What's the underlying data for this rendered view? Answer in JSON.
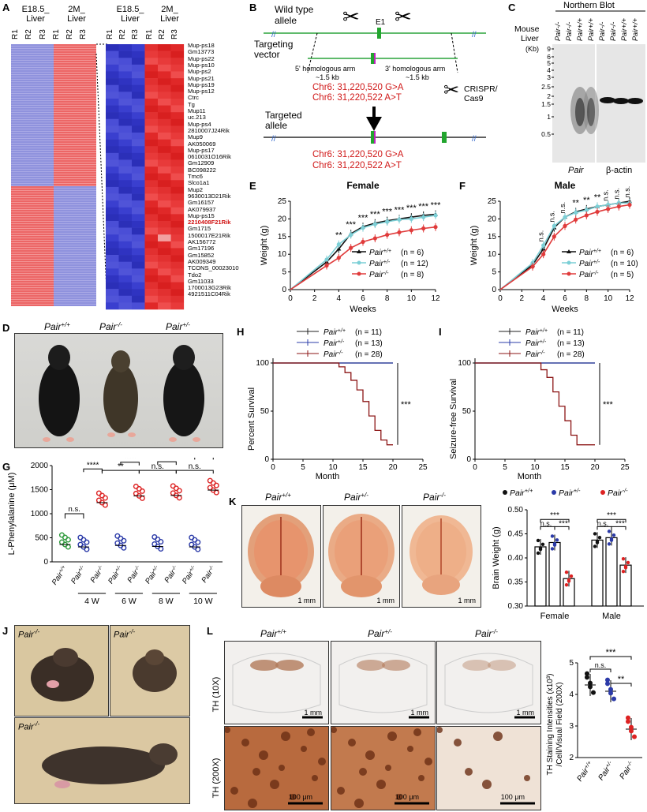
{
  "panel_letters": [
    "A",
    "B",
    "C",
    "D",
    "E",
    "F",
    "G",
    "H",
    "I",
    "J",
    "K",
    "L"
  ],
  "panel_a": {
    "col_groups": [
      "E18.5_\nLiver",
      "2M_\nLiver"
    ],
    "group1": "E18.5_ Liver",
    "group2": "2M_ Liver",
    "group1_short": "E18.5_",
    "group1_second": "Liver",
    "group2_short": "2M_",
    "group2_second": "Liver",
    "replicates": [
      "R1",
      "R2",
      "R3"
    ],
    "genes": [
      "Mup-ps18",
      "Gm13773",
      "Mup-ps22",
      "Mup-ps10",
      "Mup-ps2",
      "Mup-ps21",
      "Mup-ps19",
      "Mup-ps12",
      "Ctrc",
      "Tg",
      "Mup11",
      "uc.213",
      "Mup-ps4",
      "2810007J24Rik",
      "Mup9",
      "AK050069",
      "Mup-ps17",
      "0610031O16Rik",
      "Gm12909",
      "BC098222",
      "Tmc6",
      "Slco1a1",
      "Mup2",
      "9630013D21Rik",
      "Gm16157",
      "AK079937",
      "Mup-ps15",
      "2210408F21Rik",
      "Gm1715",
      "1500017E21Rik",
      "AK156772",
      "Gm17196",
      "Gm15852",
      "AK009349",
      "TCONS_00023010",
      "Tdo2",
      "Gm11033",
      "1700013G23Rik",
      "4921511C04Rik"
    ],
    "highlight_gene": "2210408F21Rik",
    "colors": {
      "high": "#e03030",
      "low": "#3a3fcf",
      "highlight": "#d01010"
    }
  },
  "panel_b": {
    "wild_type": "Wild type\nallele",
    "wt1": "Wild type",
    "wt2": "allele",
    "targeting1": "Targeting",
    "targeting2": "vector",
    "e1": "E1",
    "arm5": "5' homologous arm",
    "arm5_len": "~1.5 kb",
    "arm3": "3' homologous arm",
    "arm3_len": "~1.5 kb",
    "mut1": "Chr6: 31,220,520 G>A",
    "mut2": "Chr6: 31,220,522 A>T",
    "crispr1": "CRISPR/",
    "crispr2": "Cas9",
    "targeted1": "Targeted",
    "targeted2": "allele"
  },
  "panel_c": {
    "title": "Northern Blot",
    "mouse": "Mouse",
    "liver": "Liver",
    "kb": "(Kb)",
    "lanes": [
      "Pair-/-",
      "Pair-/-",
      "Pair+/+",
      "Pair+/+"
    ],
    "markers": [
      "9",
      "6",
      "5",
      "4",
      "3",
      "2.5",
      "2",
      "1.5",
      "1",
      "0.5"
    ],
    "probe1": "Pair",
    "probe2": "β-actin"
  },
  "panel_e": {
    "title": "Female",
    "xlabel": "Weeks",
    "ylabel": "Weight (g)",
    "legend": [
      "Pair+/+ (n = 6)",
      "Pair+/- (n = 12)",
      "Pair-/- (n = 8)"
    ],
    "leg_n": [
      "(n = 6)",
      "(n = 12)",
      "(n = 8)"
    ],
    "sig": [
      "**",
      "***",
      "***",
      "***",
      "***",
      "***",
      "***",
      "***",
      "***"
    ]
  },
  "panel_f": {
    "title": "Male",
    "xlabel": "Weeks",
    "ylabel": "Weight (g)",
    "leg_n": [
      "(n = 6)",
      "(n = 10)",
      "(n = 5)"
    ],
    "sig": [
      "n.s.",
      "n.s.",
      "n.s.",
      "**",
      "**",
      "**",
      "n.s.",
      "n.s.",
      "n.s."
    ]
  },
  "panel_d": {
    "labels": [
      "Pair+/+",
      "Pair-/-",
      "Pair+/-"
    ]
  },
  "panel_g": {
    "ylabel": "L-Phenylalanine (μM)",
    "groups": [
      "4 W",
      "6 W",
      "8 W",
      "10 W"
    ],
    "sig_top": [
      "**",
      "n.s.",
      "n.s."
    ],
    "sig_group": [
      "****",
      "****",
      "****",
      "****"
    ],
    "sig_first": "n.s."
  },
  "panel_h": {
    "ylabel": "Percent Survival",
    "xlabel": "Month",
    "leg_n": [
      "(n = 11)",
      "(n = 13)",
      "(n = 28)"
    ],
    "sig": "***"
  },
  "panel_i": {
    "ylabel": "Seizure-free Survival",
    "xlabel": "Month",
    "leg_n": [
      "(n = 11)",
      "(n = 13)",
      "(n = 28)"
    ],
    "sig": "***"
  },
  "panel_k": {
    "labels": [
      "Pair+/+",
      "Pair+/-",
      "Pair-/-"
    ],
    "scale": "1 mm",
    "ylabel": "Brain Weight (g)",
    "groups": [
      "Female",
      "Male"
    ],
    "sig": [
      "***",
      "n.s.",
      "***",
      "***",
      "n.s.",
      "***"
    ]
  },
  "panel_j": {
    "labels": [
      "Pair-/-",
      "Pair-/-",
      "Pair-/-"
    ]
  },
  "panel_l": {
    "cols": [
      "Pair+/+",
      "Pair+/-",
      "Pair-/-"
    ],
    "row1": "TH (10X)",
    "row2": "TH (200X)",
    "scale1": "1 mm",
    "scale2": "100 μm",
    "ylabel1": "TH Staining Intensities (x10³)",
    "ylabel2": "/Cell/Visual Field (200X)",
    "sig": [
      "***",
      "n.s.",
      "**"
    ]
  },
  "genotypes": {
    "wt": "Pair",
    "het": "Pair",
    "ko": "Pair",
    "wt_sup": "+/+",
    "het_sup": "+/-",
    "ko_sup": "-/-"
  },
  "chart_data": [
    {
      "type": "line",
      "title": "Female",
      "xlabel": "Weeks",
      "ylabel": "Weight (g)",
      "xlim": [
        0,
        12
      ],
      "ylim": [
        0,
        25
      ],
      "x": [
        0,
        3,
        4,
        5,
        6,
        7,
        8,
        9,
        10,
        11,
        12
      ],
      "series": [
        {
          "name": "Pair+/+ (n = 6)",
          "values": [
            0,
            7.8,
            11.5,
            15.8,
            17.8,
            18.8,
            19.5,
            20,
            20.5,
            21,
            21.3
          ]
        },
        {
          "name": "Pair+/- (n = 12)",
          "values": [
            0,
            8.5,
            12.8,
            15.5,
            17.5,
            18.5,
            19.2,
            19.8,
            20,
            20.5,
            21
          ]
        },
        {
          "name": "Pair-/- (n = 8)",
          "values": [
            0,
            6.8,
            9,
            11.8,
            13.5,
            14.5,
            15.5,
            16.2,
            16.8,
            17.3,
            17.7
          ]
        }
      ]
    },
    {
      "type": "line",
      "title": "Male",
      "xlabel": "Weeks",
      "ylabel": "Weight (g)",
      "xlim": [
        0,
        12
      ],
      "ylim": [
        0,
        25
      ],
      "x": [
        0,
        3,
        4,
        5,
        6,
        7,
        8,
        9,
        10,
        11,
        12
      ],
      "series": [
        {
          "name": "Pair+/+ (n = 6)",
          "values": [
            0,
            7,
            11.5,
            17.5,
            20.5,
            22,
            22.8,
            23.5,
            24,
            24.5,
            25
          ]
        },
        {
          "name": "Pair+/- (n = 10)",
          "values": [
            0,
            7.5,
            12.5,
            18,
            20.5,
            21.8,
            22.5,
            23.5,
            24,
            24.5,
            24.5
          ]
        },
        {
          "name": "Pair-/- (n = 5)",
          "values": [
            0,
            6.5,
            10,
            15,
            18,
            19.8,
            21,
            22,
            22.8,
            23.5,
            24
          ]
        }
      ]
    },
    {
      "type": "scatter",
      "ylabel": "L-Phenylalanine (μM)",
      "ylim": [
        0,
        2000
      ],
      "categories": [
        "Pair+/+",
        "Pair+/-",
        "Pair-/- 4 W",
        "Pair+/- 6 W",
        "Pair-/- 6 W",
        "Pair+/- 8 W",
        "Pair-/- 8 W",
        "Pair+/- 10 W",
        "Pair-/- 10 W"
      ],
      "values": [
        360,
        310,
        1230,
        340,
        1370,
        320,
        1380,
        310,
        1490
      ]
    },
    {
      "type": "line",
      "ylabel": "Percent Survival",
      "xlabel": "Month",
      "xlim": [
        0,
        25
      ],
      "ylim": [
        0,
        100
      ],
      "series": [
        {
          "name": "Pair+/+ (n = 11)",
          "x": [
            0,
            20
          ],
          "values": [
            100,
            100
          ]
        },
        {
          "name": "Pair+/- (n = 13)",
          "x": [
            0,
            20
          ],
          "values": [
            100,
            100
          ]
        },
        {
          "name": "Pair-/- (n = 28)",
          "x": [
            0,
            10,
            11,
            12,
            13,
            14,
            15,
            16,
            17,
            18,
            19,
            20
          ],
          "values": [
            100,
            100,
            96,
            90,
            82,
            72,
            60,
            45,
            30,
            20,
            15,
            15
          ]
        }
      ]
    },
    {
      "type": "line",
      "ylabel": "Seizure-free Survival",
      "xlabel": "Month",
      "xlim": [
        0,
        25
      ],
      "ylim": [
        0,
        100
      ],
      "series": [
        {
          "name": "Pair+/+ (n = 11)",
          "x": [
            0,
            20
          ],
          "values": [
            100,
            100
          ]
        },
        {
          "name": "Pair+/- (n = 13)",
          "x": [
            0,
            20
          ],
          "values": [
            100,
            100
          ]
        },
        {
          "name": "Pair-/- (n = 28)",
          "x": [
            0,
            10,
            11,
            12,
            13,
            14,
            15,
            16,
            17,
            20
          ],
          "values": [
            100,
            100,
            93,
            85,
            70,
            55,
            40,
            25,
            15,
            15
          ]
        }
      ]
    },
    {
      "type": "bar",
      "ylabel": "Brain Weight (g)",
      "ylim": [
        0.3,
        0.5
      ],
      "categories": [
        "Female",
        "Male"
      ],
      "series": [
        {
          "name": "Pair+/+",
          "values": [
            0.423,
            0.437
          ]
        },
        {
          "name": "Pair+/-",
          "values": [
            0.432,
            0.442
          ]
        },
        {
          "name": "Pair-/-",
          "values": [
            0.357,
            0.385
          ]
        }
      ]
    },
    {
      "type": "scatter",
      "ylabel": "TH Staining Intensities (x10³) /Cell/Visual Field (200X)",
      "ylim": [
        2,
        5
      ],
      "categories": [
        "Pair+/+",
        "Pair+/-",
        "Pair-/-"
      ],
      "values": [
        4.3,
        4.1,
        2.9
      ]
    }
  ]
}
